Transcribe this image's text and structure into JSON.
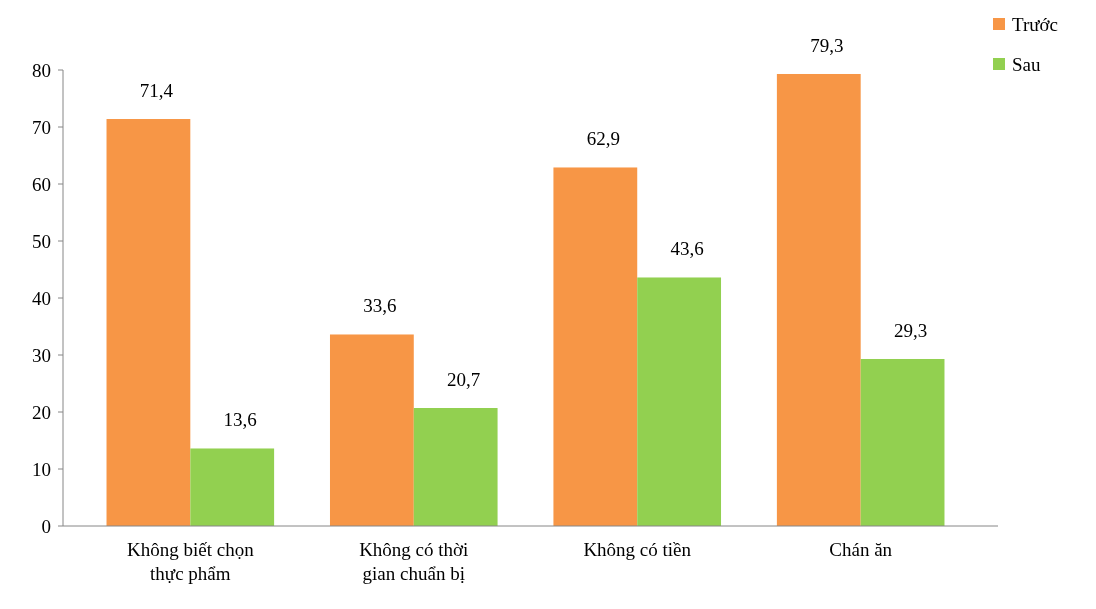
{
  "chart_data": {
    "type": "bar",
    "categories": [
      "Không biết chọn thực phẩm",
      "Không có thời gian chuẩn bị",
      "Không có tiền",
      "Chán ăn"
    ],
    "series": [
      {
        "name": "Trước",
        "color": "#f79646",
        "values": [
          71.4,
          33.6,
          62.9,
          79.3
        ],
        "value_labels": [
          "71,4",
          "33,6",
          "62,9",
          "79,3"
        ]
      },
      {
        "name": "Sau",
        "color": "#92d050",
        "values": [
          13.6,
          20.7,
          43.6,
          29.3
        ],
        "value_labels": [
          "13,6",
          "20,7",
          "43,6",
          "29,3"
        ]
      }
    ],
    "ylim": [
      0,
      80
    ],
    "yticks": [
      0,
      10,
      20,
      30,
      40,
      50,
      60,
      70,
      80
    ],
    "legend": "top right"
  }
}
